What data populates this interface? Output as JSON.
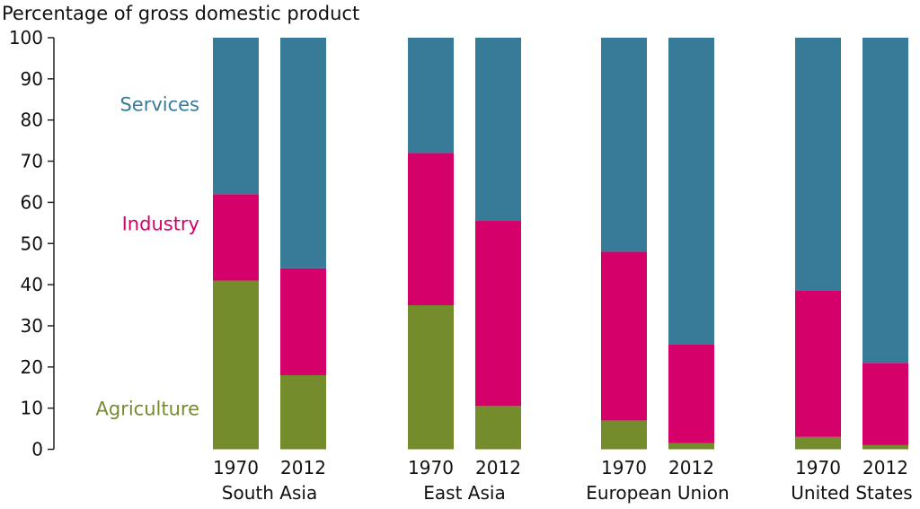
{
  "chart_data": {
    "type": "bar",
    "stacked": true,
    "ylabel": "Percentage of gross domestic product",
    "ylim": [
      0,
      100
    ],
    "yticks": [
      0,
      10,
      20,
      30,
      40,
      50,
      60,
      70,
      80,
      90,
      100
    ],
    "grid": false,
    "groups": [
      {
        "label": "South Asia",
        "years": [
          "1970",
          "2012"
        ]
      },
      {
        "label": "East Asia",
        "years": [
          "1970",
          "2012"
        ]
      },
      {
        "label": "European Union",
        "years": [
          "1970",
          "2012"
        ]
      },
      {
        "label": "United States",
        "years": [
          "1970",
          "2012"
        ]
      }
    ],
    "series": [
      {
        "name": "Agriculture",
        "color": "#758c2d",
        "values": [
          41,
          18,
          35,
          10.5,
          7,
          1.5,
          3,
          1
        ]
      },
      {
        "name": "Industry",
        "color": "#d6006a",
        "values": [
          21,
          26,
          37,
          45,
          41,
          24,
          35.5,
          20
        ]
      },
      {
        "name": "Services",
        "color": "#387b98",
        "values": [
          38,
          56,
          28,
          44.5,
          52,
          74.5,
          61.5,
          79
        ]
      }
    ],
    "legend_placement": "inline-left"
  }
}
